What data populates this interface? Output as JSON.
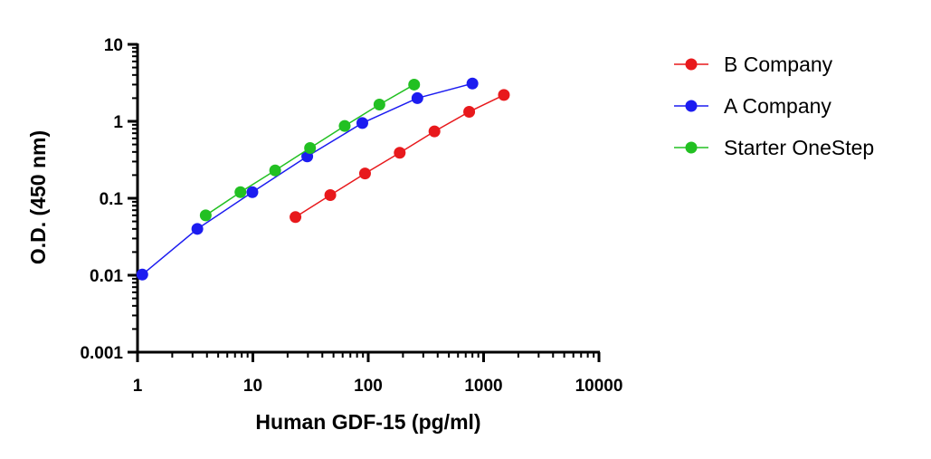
{
  "chart_data": {
    "type": "scatter",
    "title": "",
    "xlabel": "Human GDF-15 (pg/ml)",
    "ylabel": "O.D. (450 nm)",
    "x_scale": "log",
    "y_scale": "log",
    "xlim": [
      1,
      10000
    ],
    "ylim": [
      0.001,
      10
    ],
    "x_ticks": [
      {
        "value": 1,
        "label": "1"
      },
      {
        "value": 10,
        "label": "10"
      },
      {
        "value": 100,
        "label": "100"
      },
      {
        "value": 1000,
        "label": "1000"
      },
      {
        "value": 10000,
        "label": "10000"
      }
    ],
    "y_ticks": [
      {
        "value": 0.001,
        "label": "0.001"
      },
      {
        "value": 0.01,
        "label": "0.01"
      },
      {
        "value": 0.1,
        "label": "0.1"
      },
      {
        "value": 1,
        "label": "1"
      },
      {
        "value": 10,
        "label": "10"
      }
    ],
    "grid": false,
    "legend_position": "right",
    "series": [
      {
        "name": "B Company",
        "color": "#e8191c",
        "x": [
          23.4,
          46.9,
          93.8,
          187.5,
          375,
          750,
          1500
        ],
        "y": [
          0.057,
          0.11,
          0.21,
          0.39,
          0.74,
          1.33,
          2.2
        ]
      },
      {
        "name": "A Company",
        "color": "#1c1cf0",
        "x": [
          1.1,
          3.3,
          9.9,
          29.6,
          88.9,
          266.7,
          800
        ],
        "y": [
          0.0102,
          0.04,
          0.12,
          0.35,
          0.95,
          2.0,
          3.1
        ]
      },
      {
        "name": "Starter OneStep",
        "color": "#22c022",
        "x": [
          3.9,
          7.8,
          15.6,
          31.3,
          62.5,
          125,
          250
        ],
        "y": [
          0.06,
          0.12,
          0.23,
          0.45,
          0.87,
          1.65,
          3.0
        ]
      }
    ]
  }
}
